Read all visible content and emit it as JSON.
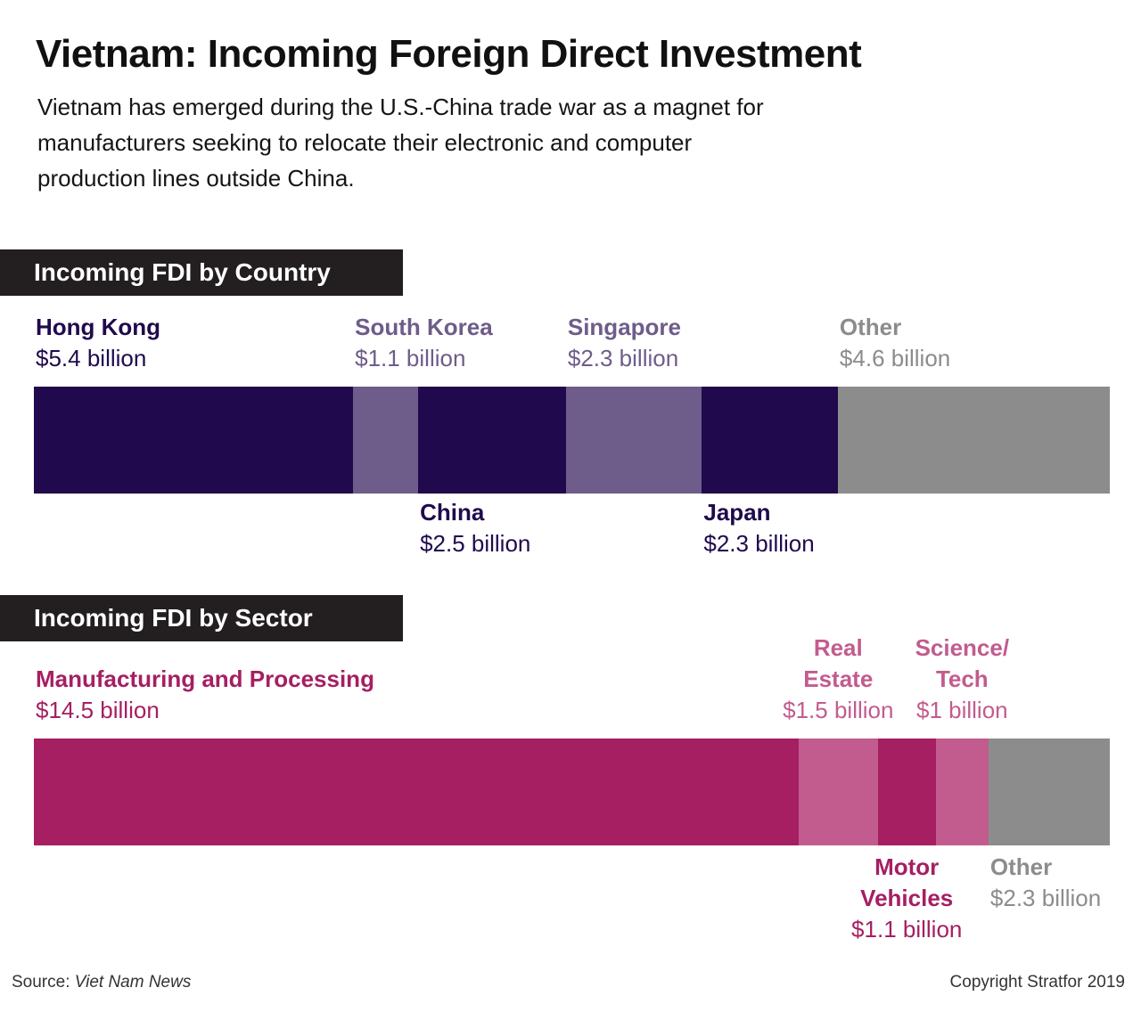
{
  "title": "Vietnam: Incoming Foreign Direct Investment",
  "subtitle": "Vietnam has emerged during the U.S.-China trade war as a magnet for manufacturers seeking to relocate their electronic and computer production lines outside China.",
  "source_prefix": "Source: ",
  "source_name": "Viet Nam News",
  "copyright": "Copyright Stratfor 2019",
  "colors": {
    "country_dark": "#200a4d",
    "country_light": "#6e5c8a",
    "sector_dark": "#a51f62",
    "sector_light": "#c25c8e",
    "other": "#8c8c8c"
  },
  "chart_data": [
    {
      "type": "bar",
      "stacked": "horizontal",
      "title": "Incoming FDI by Country",
      "unit": "billion USD",
      "categories": [
        "Hong Kong",
        "South Korea",
        "China",
        "Singapore",
        "Japan",
        "Other"
      ],
      "values": [
        5.4,
        1.1,
        2.5,
        2.3,
        2.3,
        4.6
      ],
      "value_labels": [
        "$5.4 billion",
        "$1.1 billion",
        "$2.5 billion",
        "$2.3 billion",
        "$2.3 billion",
        "$4.6 billion"
      ],
      "colors": [
        "#200a4d",
        "#6e5c8a",
        "#200a4d",
        "#6e5c8a",
        "#200a4d",
        "#8c8c8c"
      ],
      "label_positions": [
        "above",
        "above",
        "below",
        "above",
        "below",
        "above"
      ]
    },
    {
      "type": "bar",
      "stacked": "horizontal",
      "title": "Incoming FDI by Sector",
      "unit": "billion USD",
      "categories": [
        "Manufacturing and Processing",
        "Real Estate",
        "Motor Vehicles",
        "Science/ Tech",
        "Other"
      ],
      "values": [
        14.5,
        1.5,
        1.1,
        1.0,
        2.3
      ],
      "value_labels": [
        "$14.5 billion",
        "$1.5 billion",
        "$1.1 billion",
        "$1 billion",
        "$2.3 billion"
      ],
      "colors": [
        "#a51f62",
        "#c25c8e",
        "#a51f62",
        "#c25c8e",
        "#8c8c8c"
      ],
      "label_positions": [
        "above",
        "above",
        "below",
        "above",
        "below"
      ]
    }
  ]
}
